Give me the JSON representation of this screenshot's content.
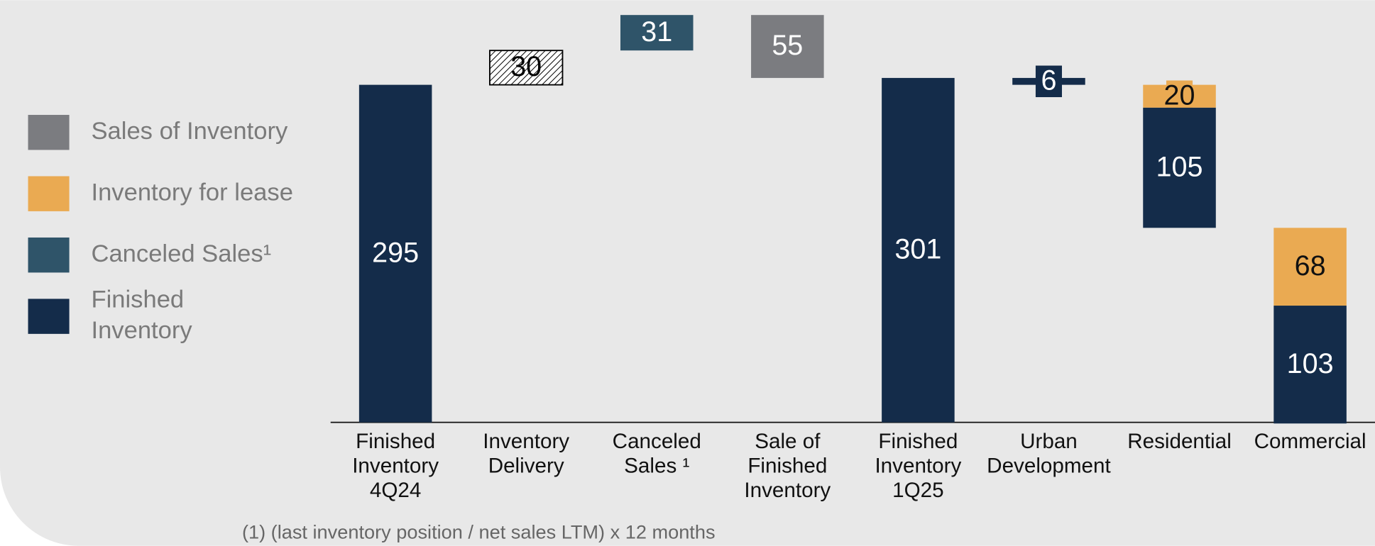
{
  "chart_data": {
    "type": "waterfall",
    "categories": [
      [
        "Finished",
        "Inventory",
        "4Q24"
      ],
      [
        "Inventory",
        "Delivery"
      ],
      [
        "Canceled",
        "Sales ¹"
      ],
      [
        "Sale of",
        "Finished",
        "Inventory"
      ],
      [
        "Finished",
        "Inventory",
        "1Q25"
      ],
      [
        "Urban",
        "Development"
      ],
      [
        "Residential"
      ],
      [
        "Commercial"
      ]
    ],
    "steps": [
      "total",
      "up",
      "up",
      "down",
      "total",
      "down",
      "down",
      "down"
    ],
    "series": [
      {
        "name": [
          "Sales of Inventory"
        ],
        "color": "#7b7c80",
        "label_color": "#ffffff",
        "values": [
          null,
          null,
          null,
          55,
          null,
          null,
          null,
          null
        ]
      },
      {
        "name": [
          "Inventory for lease"
        ],
        "color": "#eaaa52",
        "label_color": "#111111",
        "values": [
          null,
          null,
          null,
          null,
          null,
          null,
          20,
          68
        ]
      },
      {
        "name": [
          "Canceled Sales¹"
        ],
        "color": "#2f5469",
        "label_color": "#ffffff",
        "values": [
          null,
          null,
          31,
          null,
          null,
          null,
          null,
          null
        ]
      },
      {
        "name": [
          "Finished",
          "Inventory"
        ],
        "color": "#142c4a",
        "label_color": "#ffffff",
        "values": [
          295,
          null,
          null,
          null,
          301,
          6,
          105,
          103
        ]
      },
      {
        "color": "#ffffff",
        "pattern": "hatch",
        "label_color": "#000000",
        "values": [
          null,
          30,
          null,
          null,
          null,
          null,
          null,
          null
        ]
      }
    ],
    "ylim": [
      0,
      369
    ],
    "footnote": "(1) (last inventory position / net sales LTM) x 12 months"
  }
}
